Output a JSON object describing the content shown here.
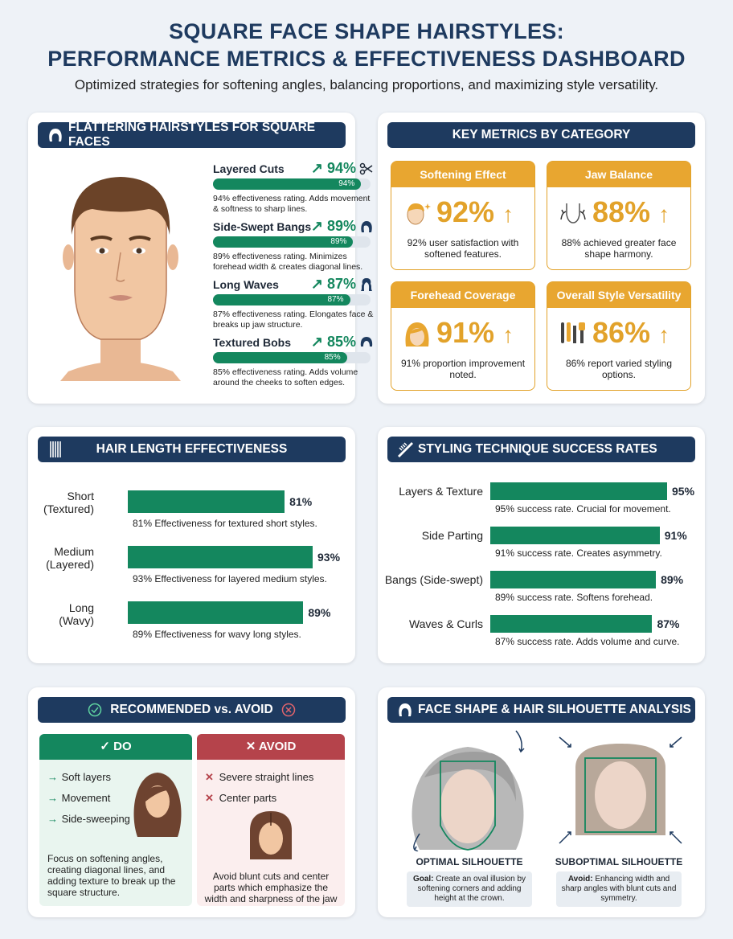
{
  "header": {
    "title_line1": "SQUARE FACE SHAPE HAIRSTYLES:",
    "title_line2": "PERFORMANCE METRICS & EFFECTIVENESS DASHBOARD",
    "subtitle": "Optimized strategies for softening angles, balancing proportions, and maximizing style versatility."
  },
  "flattering": {
    "title": "FLATTERING HAIRSTYLES FOR SQUARE FACES",
    "items": [
      {
        "name": "Layered Cuts",
        "pct": "↗ 94%",
        "bar_label": "94%",
        "value": 94,
        "desc": "94% effectiveness rating. Adds movement & softness to sharp lines.",
        "icon": "scissors-icon"
      },
      {
        "name": "Side-Swept Bangs",
        "pct": "↗ 89%",
        "bar_label": "89%",
        "value": 89,
        "desc": "89% effectiveness rating. Minimizes forehead width & creates diagonal lines.",
        "icon": "side-bang-hair-icon"
      },
      {
        "name": "Long Waves",
        "pct": "↗ 87%",
        "bar_label": "87%",
        "value": 87,
        "desc": "87% effectiveness rating. Elongates face & breaks up jaw structure.",
        "icon": "wavy-hair-icon"
      },
      {
        "name": "Textured Bobs",
        "pct": "↗ 85%",
        "bar_label": "85%",
        "value": 85,
        "desc": "85% effectiveness rating. Adds volume around the cheeks to soften edges.",
        "icon": "bob-hair-icon"
      }
    ]
  },
  "metrics": {
    "title": "KEY METRICS BY CATEGORY",
    "items": [
      {
        "title": "Softening Effect",
        "value": "92%",
        "arrow": "↑",
        "desc": "92% user satisfaction with softened features.",
        "icon": "sparkle-face-icon"
      },
      {
        "title": "Jaw Balance",
        "value": "88%",
        "arrow": "↑",
        "desc": "88% achieved greater face shape harmony.",
        "icon": "jaw-arrows-icon"
      },
      {
        "title": "Forehead Coverage",
        "value": "91%",
        "arrow": "↑",
        "desc": "91% proportion improvement noted.",
        "icon": "bangs-face-icon"
      },
      {
        "title": "Overall Style Versatility",
        "value": "86%",
        "arrow": "↑",
        "desc": "86% report varied styling options.",
        "icon": "styling-tools-icon"
      }
    ]
  },
  "hair_length": {
    "title": "HAIR LENGTH EFFECTIVENESS",
    "rows": [
      {
        "label_line1": "Short",
        "label_line2": "(Textured)",
        "value": 81,
        "value_label": "81%",
        "desc": "81% Effectiveness for textured short styles."
      },
      {
        "label_line1": "Medium",
        "label_line2": "(Layered)",
        "value": 93,
        "value_label": "93%",
        "desc": "93% Effectiveness for layered medium styles."
      },
      {
        "label_line1": "Long",
        "label_line2": "(Wavy)",
        "value": 89,
        "value_label": "89%",
        "desc": "89% Effectiveness for wavy long styles."
      }
    ]
  },
  "technique": {
    "title": "STYLING TECHNIQUE SUCCESS RATES",
    "rows": [
      {
        "label": "Layers & Texture",
        "value": 95,
        "value_label": "95%",
        "desc": "95% success rate. Crucial for movement."
      },
      {
        "label": "Side Parting",
        "value": 91,
        "value_label": "91%",
        "desc": "91% success rate. Creates asymmetry."
      },
      {
        "label": "Bangs (Side-swept)",
        "value": 89,
        "value_label": "89%",
        "desc": "89% success rate. Softens forehead."
      },
      {
        "label": "Waves & Curls",
        "value": 87,
        "value_label": "87%",
        "desc": "87% success rate. Adds volume and curve."
      }
    ]
  },
  "recommend": {
    "title": "RECOMMENDED vs. AVOID",
    "do_title": "✓ DO",
    "avoid_title": "✕ AVOID",
    "do_items": [
      "Soft layers",
      "Movement",
      "Side-sweeping"
    ],
    "avoid_items": [
      "Severe straight lines",
      "Center parts"
    ],
    "do_note": "Focus on softening angles, creating diagonal lines, and adding texture to break up the square structure.",
    "avoid_note": "Avoid blunt cuts and center parts which emphasize the width and sharpness of the jaw and forehead.",
    "do_marker": "→",
    "avoid_marker": "✕"
  },
  "silhouette": {
    "title": "FACE SHAPE & HAIR SILHOUETTE ANALYSIS",
    "optimal_label": "OPTIMAL SILHOUETTE",
    "optimal_note_bold": "Goal:",
    "optimal_note": " Create an oval illusion by softening corners and adding height at the crown.",
    "suboptimal_label": "SUBOPTIMAL SILHOUETTE",
    "suboptimal_note_bold": "Avoid:",
    "suboptimal_note": " Enhancing width and sharp angles with blunt cuts and symmetry."
  },
  "colors": {
    "navy": "#1e3a5f",
    "green": "#14875e",
    "amber": "#e2a22a",
    "red": "#b5434b"
  }
}
